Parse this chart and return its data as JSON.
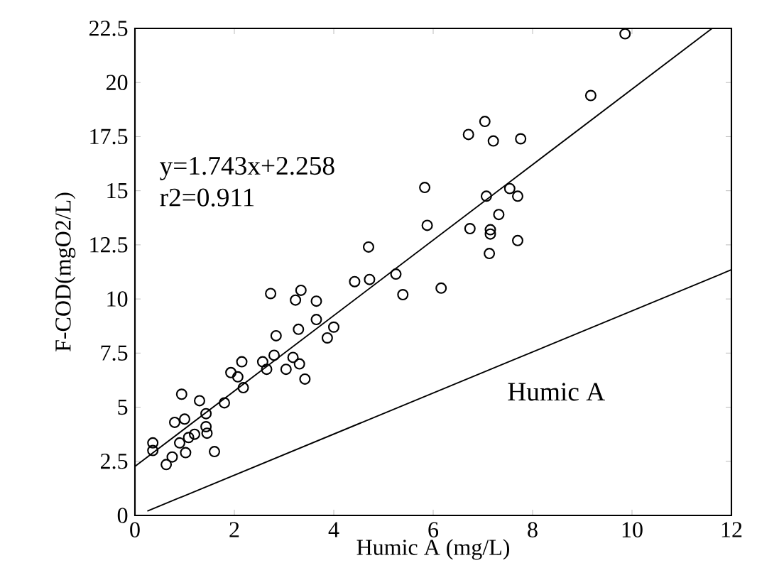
{
  "chart_data": {
    "type": "scatter",
    "xlabel": "Humic A (mg/L)",
    "ylabel": "F-COD(mgO2/L)",
    "xlim": [
      0,
      12
    ],
    "ylim": [
      0,
      22.5
    ],
    "xticks": [
      0,
      2,
      4,
      6,
      8,
      10,
      12
    ],
    "yticks": [
      0,
      2.5,
      5,
      7.5,
      10,
      12.5,
      15,
      17.5,
      20,
      22.5
    ],
    "grid": false,
    "legend": false,
    "annotations": [
      "y=1.743x+2.258",
      "r2=0.911"
    ],
    "series": [
      {
        "marker": "circle",
        "color": "#000000",
        "x": [
          0.36,
          0.36,
          0.63,
          0.75,
          0.8,
          0.94,
          1.0,
          1.02,
          0.9,
          1.08,
          1.2,
          1.3,
          1.43,
          1.43,
          1.45,
          1.6,
          1.8,
          1.93,
          2.07,
          2.15,
          2.18,
          2.57,
          2.65,
          2.73,
          2.8,
          2.84,
          3.04,
          3.18,
          3.23,
          3.29,
          3.31,
          3.34,
          3.42,
          3.65,
          3.65,
          3.87,
          4.0,
          4.42,
          4.7,
          4.72,
          5.25,
          5.39,
          5.83,
          5.88,
          6.16,
          6.71,
          6.74,
          7.04,
          7.07,
          7.13,
          7.15,
          7.15,
          7.21,
          7.32,
          7.54,
          7.7,
          7.7,
          7.76,
          9.17,
          9.86
        ],
        "values": [
          3.35,
          3.0,
          2.35,
          2.7,
          4.3,
          5.6,
          4.45,
          2.9,
          3.35,
          3.6,
          3.75,
          5.3,
          4.1,
          4.7,
          3.8,
          2.95,
          5.2,
          6.6,
          6.4,
          7.1,
          5.9,
          7.1,
          6.75,
          10.25,
          7.4,
          8.3,
          6.75,
          7.3,
          9.95,
          8.6,
          7.0,
          10.4,
          6.3,
          9.05,
          9.9,
          8.2,
          8.7,
          10.8,
          12.4,
          10.9,
          11.15,
          10.2,
          15.15,
          13.4,
          10.5,
          17.6,
          13.25,
          18.2,
          14.75,
          12.1,
          13.2,
          13.0,
          17.3,
          13.9,
          15.1,
          14.75,
          12.7,
          17.4,
          19.4,
          22.25
        ]
      },
      {
        "type": "line",
        "marker": "none",
        "color": "#000000",
        "x": [
          0,
          11.61
        ],
        "values": [
          2.26,
          22.5
        ]
      },
      {
        "type": "line",
        "marker": "none",
        "color": "#000000",
        "name": "Humic A",
        "x": [
          0.25,
          12
        ],
        "values": [
          0.2,
          11.35
        ]
      }
    ]
  }
}
